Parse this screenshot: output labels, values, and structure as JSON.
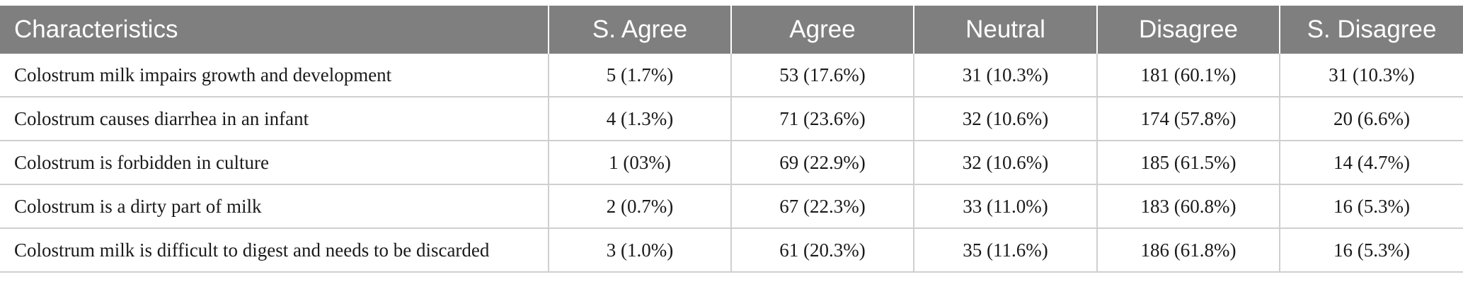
{
  "table": {
    "headers": [
      "Characteristics",
      "S. Agree",
      "Agree",
      "Neutral",
      "Disagree",
      "S. Disagree"
    ],
    "rows": [
      [
        "Colostrum milk impairs growth and development",
        "5 (1.7%)",
        "53 (17.6%)",
        "31 (10.3%)",
        "181 (60.1%)",
        "31 (10.3%)"
      ],
      [
        "Colostrum causes diarrhea in an infant",
        "4 (1.3%)",
        "71 (23.6%)",
        "32 (10.6%)",
        "174 (57.8%)",
        "20 (6.6%)"
      ],
      [
        "Colostrum is forbidden in culture",
        "1 (03%)",
        "69 (22.9%)",
        "32 (10.6%)",
        "185 (61.5%)",
        "14 (4.7%)"
      ],
      [
        "Colostrum is a dirty part of milk",
        "2 (0.7%)",
        "67 (22.3%)",
        "33 (11.0%)",
        "183 (60.8%)",
        "16 (5.3%)"
      ],
      [
        "Colostrum milk is difficult to digest and needs to be discarded",
        "3 (1.0%)",
        "61 (20.3%)",
        "35 (11.6%)",
        "186 (61.8%)",
        "16 (5.3%)"
      ]
    ]
  }
}
